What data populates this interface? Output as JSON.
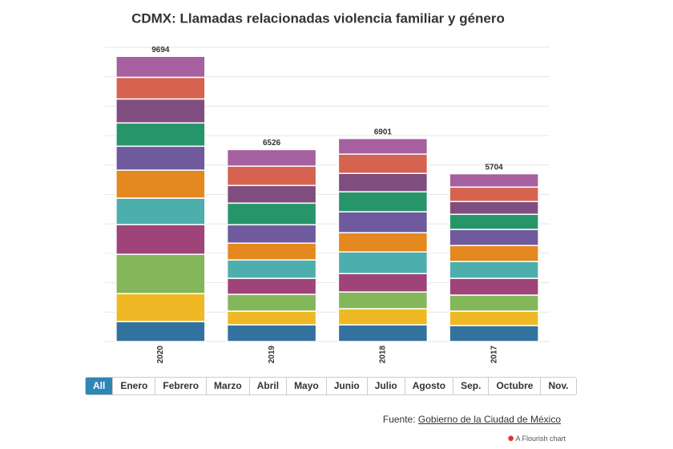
{
  "chart_data": {
    "type": "stacked_bar",
    "title": "CDMX: Llamadas relacionadas violencia familiar y género",
    "categories": [
      "2020",
      "2019",
      "2018",
      "2017"
    ],
    "totals": [
      9694,
      6526,
      6901,
      5704
    ],
    "series": [
      {
        "name": "Enero",
        "color": "#33729e",
        "values": [
          680,
          570,
          570,
          545
        ]
      },
      {
        "name": "Febrero",
        "color": "#efb925",
        "values": [
          950,
          465,
          545,
          490
        ]
      },
      {
        "name": "Marzo",
        "color": "#84b65a",
        "values": [
          1335,
          570,
          570,
          545
        ]
      },
      {
        "name": "Abril",
        "color": "#9e4479",
        "values": [
          1010,
          545,
          625,
          570
        ]
      },
      {
        "name": "Mayo",
        "color": "#4daeae",
        "values": [
          900,
          625,
          735,
          570
        ]
      },
      {
        "name": "Junio",
        "color": "#e3891f",
        "values": [
          950,
          570,
          655,
          545
        ]
      },
      {
        "name": "Julio",
        "color": "#6e5a9d",
        "values": [
          815,
          625,
          710,
          545
        ]
      },
      {
        "name": "Agosto",
        "color": "#27956a",
        "values": [
          790,
          735,
          680,
          515
        ]
      },
      {
        "name": "Sep.",
        "color": "#7f4e7f",
        "values": [
          815,
          600,
          625,
          435
        ]
      },
      {
        "name": "Octubre",
        "color": "#d5634f",
        "values": [
          735,
          655,
          655,
          490
        ]
      },
      {
        "name": "Nov.",
        "color": "#a7609f",
        "values": [
          714,
          566,
          531,
          454
        ]
      }
    ],
    "all_button": "All",
    "ylim": [
      0,
      10000
    ],
    "yticks": [
      0,
      1000,
      2000,
      3000,
      4000,
      5000,
      6000,
      7000,
      8000,
      9000,
      10000
    ],
    "ytick_labels": false,
    "grid": true,
    "source_prefix": "Fuente: ",
    "source_link": "Gobierno de la Ciudad de México",
    "credit": "A Flourish chart"
  }
}
